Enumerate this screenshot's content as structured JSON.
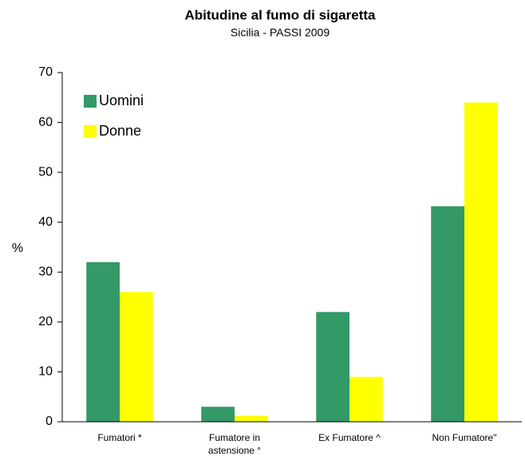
{
  "chart_data": {
    "type": "bar",
    "title": "Abitudine al fumo di sigaretta",
    "subtitle": "Sicilia - PASSI 2009",
    "y_label": "%",
    "categories": [
      "Fumatori *",
      "Fumatore in astensione °",
      "Ex Fumatore ^",
      "Non Fumatore\""
    ],
    "series": [
      {
        "name": "Uomini",
        "color": "#339966",
        "values": [
          32,
          3,
          22,
          43.2
        ]
      },
      {
        "name": "Donne",
        "color": "#ffff00",
        "values": [
          26,
          1.2,
          9,
          64
        ]
      }
    ],
    "ylim": [
      0,
      70
    ],
    "yticks": [
      0,
      10,
      20,
      30,
      40,
      50,
      60,
      70
    ],
    "grid": false,
    "legend": "upper left"
  }
}
